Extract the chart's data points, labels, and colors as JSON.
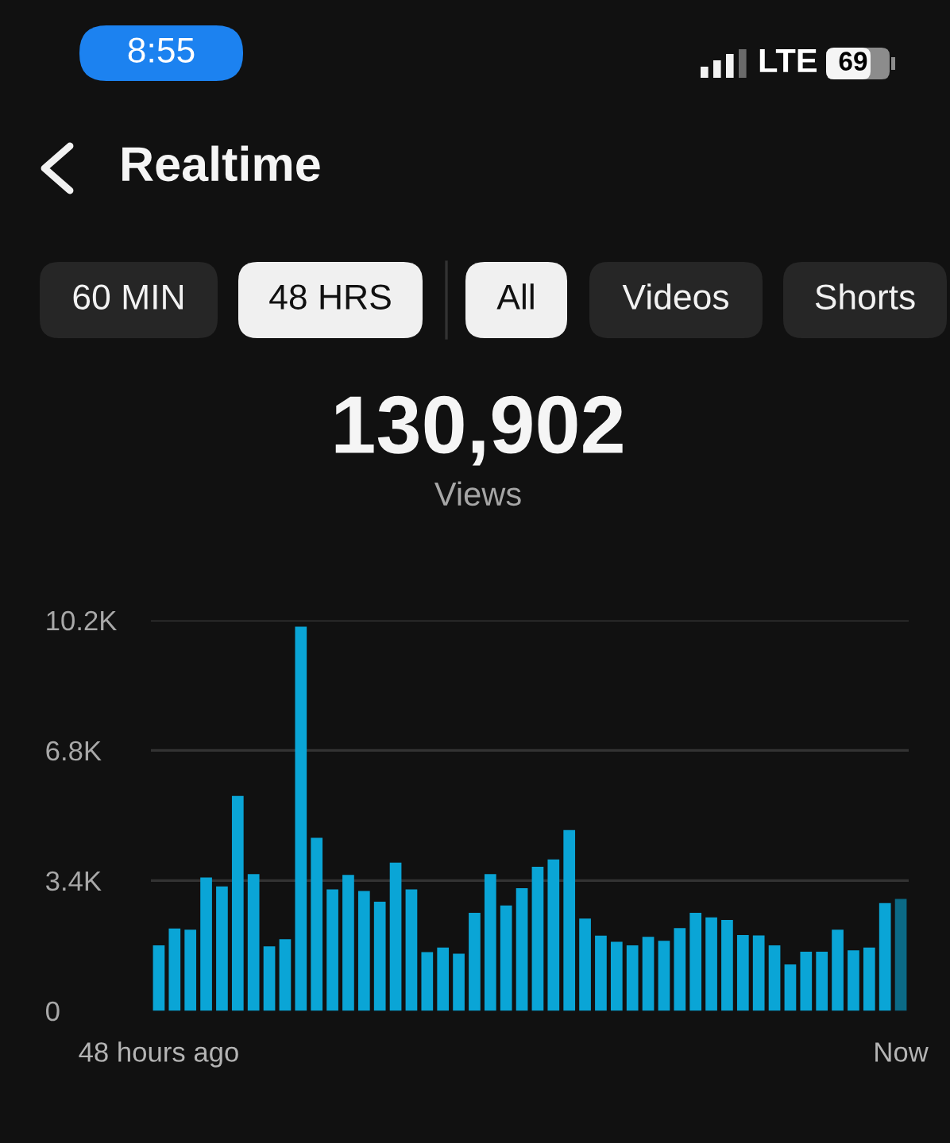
{
  "chart_data": {
    "type": "bar",
    "title": "Realtime",
    "annotations": [
      "8:55",
      "LTE",
      "69",
      "60 MIN",
      "48 HRS",
      "All",
      "Videos",
      "Shorts",
      "130,902",
      "Views"
    ],
    "categories": [
      "48 hours ago",
      null,
      null,
      null,
      null,
      null,
      null,
      null,
      null,
      null,
      null,
      null,
      null,
      null,
      null,
      null,
      null,
      null,
      null,
      null,
      null,
      null,
      null,
      null,
      null,
      null,
      null,
      null,
      null,
      null,
      null,
      null,
      null,
      null,
      null,
      null,
      null,
      null,
      null,
      null,
      null,
      null,
      null,
      null,
      null,
      null,
      null,
      "Now"
    ],
    "values": [
      1710,
      2150,
      2120,
      3480,
      3250,
      5610,
      3570,
      1680,
      1870,
      10030,
      4520,
      3170,
      3550,
      3130,
      2850,
      3870,
      3170,
      1530,
      1650,
      1490,
      2560,
      3570,
      2750,
      3200,
      3760,
      3950,
      4720,
      2410,
      1960,
      1800,
      1710,
      1930,
      1830,
      2160,
      2560,
      2440,
      2370,
      1980,
      1970,
      1710,
      1210,
      1540,
      1540,
      2120,
      1580,
      1650,
      2810,
      2920
    ],
    "colors": [
      "#0aa5d6",
      "#0aa5d6",
      "#0aa5d6",
      "#0aa5d6",
      "#0aa5d6",
      "#0aa5d6",
      "#0aa5d6",
      "#0aa5d6",
      "#0aa5d6",
      "#0aa5d6",
      "#0aa5d6",
      "#0aa5d6",
      "#0aa5d6",
      "#0aa5d6",
      "#0aa5d6",
      "#0aa5d6",
      "#0aa5d6",
      "#0aa5d6",
      "#0aa5d6",
      "#0aa5d6",
      "#0aa5d6",
      "#0aa5d6",
      "#0aa5d6",
      "#0aa5d6",
      "#0aa5d6",
      "#0aa5d6",
      "#0aa5d6",
      "#0aa5d6",
      "#0aa5d6",
      "#0aa5d6",
      "#0aa5d6",
      "#0aa5d6",
      "#0aa5d6",
      "#0aa5d6",
      "#0aa5d6",
      "#0aa5d6",
      "#0aa5d6",
      "#0aa5d6",
      "#0aa5d6",
      "#0aa5d6",
      "#0aa5d6",
      "#0aa5d6",
      "#0aa5d6",
      "#0aa5d6",
      "#0aa5d6",
      "#0aa5d6",
      "#0aa5d6",
      "#0b6a86"
    ],
    "ylim": [
      0,
      10200
    ],
    "yticks": [
      0,
      {
        "value": 3400,
        "label": "3.4K"
      },
      {
        "value": 6800,
        "label": "6.8K"
      },
      {
        "value": 10200,
        "label": "10.2K"
      }
    ],
    "grid": "y"
  }
}
